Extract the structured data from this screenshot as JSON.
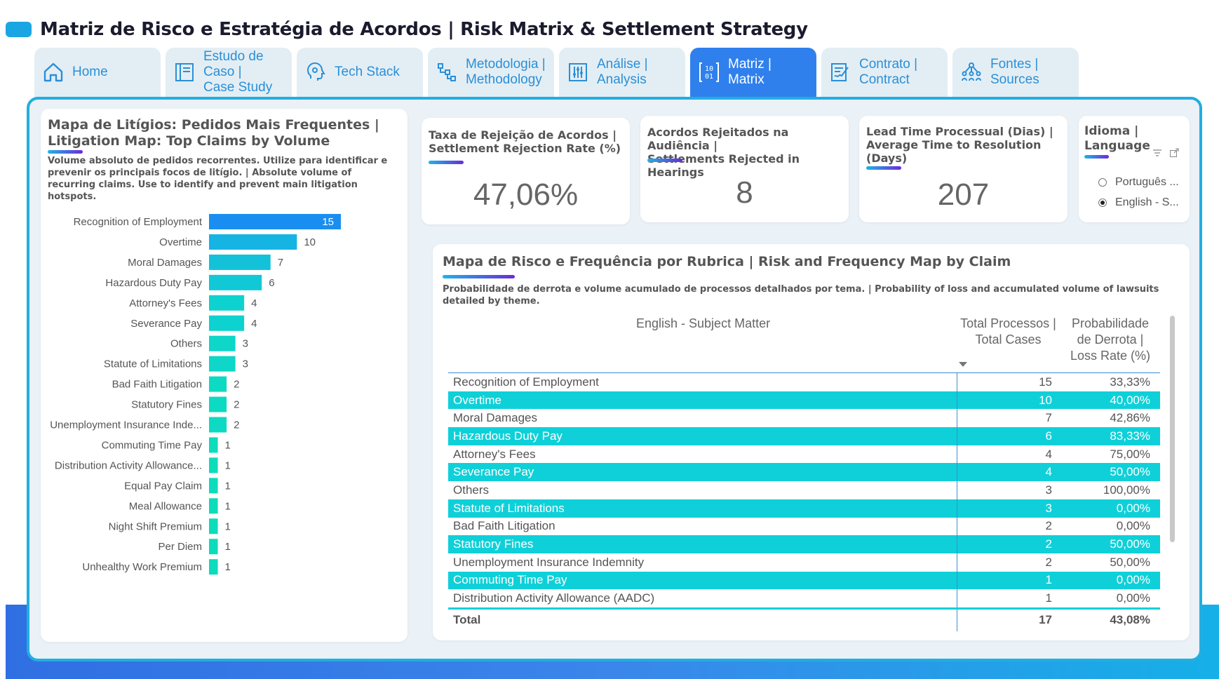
{
  "page_title": "Matriz de Risco e Estratégia de Acordos | Risk Matrix & Settlement Strategy",
  "tabs": [
    {
      "label": "Home",
      "icon": "home-icon",
      "active": false
    },
    {
      "label": "Estudo de Caso |\nCase Study",
      "icon": "document-icon",
      "active": false
    },
    {
      "label": "Tech Stack",
      "icon": "brain-gear-icon",
      "active": false
    },
    {
      "label": "Metodologia |\nMethodology",
      "icon": "flow-icon",
      "active": false
    },
    {
      "label": "Análise |\nAnalysis",
      "icon": "sliders-icon",
      "active": false
    },
    {
      "label": "Matriz |\nMatrix",
      "icon": "binary-matrix-icon",
      "active": true
    },
    {
      "label": "Contrato |\nContract",
      "icon": "contract-icon",
      "active": false
    },
    {
      "label": "Fontes |\nSources",
      "icon": "network-icon",
      "active": false
    }
  ],
  "bar_card": {
    "title": "Mapa de Litígios: Pedidos Mais Frequentes | Litigation Map: Top Claims by Volume",
    "subtitle": "Volume absoluto de pedidos recorrentes. Utilize para identificar e prevenir os principais focos de litígio. | Absolute volume of recurring claims. Use to identify and prevent main litigation hotspots."
  },
  "chart_data": {
    "type": "bar",
    "orientation": "horizontal",
    "categories": [
      "Recognition of Employment",
      "Overtime",
      "Moral Damages",
      "Hazardous Duty Pay",
      "Attorney's Fees",
      "Severance Pay",
      "Others",
      "Statute of Limitations",
      "Bad Faith Litigation",
      "Statutory Fines",
      "Unemployment Insurance Inde...",
      "Commuting Time Pay",
      "Distribution Activity Allowance...",
      "Equal Pay Claim",
      "Meal Allowance",
      "Night Shift Premium",
      "Per Diem",
      "Unhealthy Work Premium"
    ],
    "values": [
      15,
      10,
      7,
      6,
      4,
      4,
      3,
      3,
      2,
      2,
      2,
      1,
      1,
      1,
      1,
      1,
      1,
      1
    ],
    "xlim": [
      0,
      15
    ],
    "highlight_color": "#1a8ef0",
    "colors": [
      "#1a8ef0",
      "#16b4e2",
      "#13c2d9",
      "#11c8d6",
      "#0ed2cf",
      "#0ed2cf",
      "#0ed6c8",
      "#0ed6c8",
      "#0ddac2",
      "#0ddac2",
      "#0ddac2",
      "#0cdcbc",
      "#0cdcbc",
      "#0cdcbc",
      "#0cdcbc",
      "#0cdcbc",
      "#0cdcbc",
      "#0cdcbc"
    ]
  },
  "kpis": [
    {
      "title": "Taxa de Rejeição de Acordos |\nSettlement Rejection Rate (%)",
      "value": "47,06%"
    },
    {
      "title": "Acordos Rejeitados na Audiência |\nSettlements Rejected in Hearings",
      "value": "8"
    },
    {
      "title": "Lead Time Processual (Dias) |\nAverage Time to Resolution\n(Days)",
      "value": "207"
    }
  ],
  "language": {
    "title": "Idioma |\nLanguage",
    "options": [
      {
        "label": "Português ...",
        "selected": false
      },
      {
        "label": "English - S...",
        "selected": true
      }
    ]
  },
  "table_card": {
    "title": "Mapa de Risco e Frequência por Rubrica | Risk and Frequency Map by Claim",
    "subtitle": "Probabilidade de derrota e volume acumulado de processos detalhados por tema. | Probability of loss and accumulated volume of lawsuits detailed by theme.",
    "columns": [
      "English - Subject Matter",
      "Total Processos |\nTotal Cases",
      "Probabilidade\nde Derrota |\nLoss Rate (%)"
    ],
    "rows": [
      {
        "subject": "Recognition of Employment",
        "cases": "15",
        "loss": "33,33%",
        "hl": false
      },
      {
        "subject": "Overtime",
        "cases": "10",
        "loss": "40,00%",
        "hl": true
      },
      {
        "subject": "Moral Damages",
        "cases": "7",
        "loss": "42,86%",
        "hl": false
      },
      {
        "subject": "Hazardous Duty Pay",
        "cases": "6",
        "loss": "83,33%",
        "hl": true
      },
      {
        "subject": "Attorney's Fees",
        "cases": "4",
        "loss": "75,00%",
        "hl": false
      },
      {
        "subject": "Severance Pay",
        "cases": "4",
        "loss": "50,00%",
        "hl": true
      },
      {
        "subject": "Others",
        "cases": "3",
        "loss": "100,00%",
        "hl": false
      },
      {
        "subject": "Statute of Limitations",
        "cases": "3",
        "loss": "0,00%",
        "hl": true
      },
      {
        "subject": "Bad Faith Litigation",
        "cases": "2",
        "loss": "0,00%",
        "hl": false
      },
      {
        "subject": "Statutory Fines",
        "cases": "2",
        "loss": "50,00%",
        "hl": true
      },
      {
        "subject": "Unemployment Insurance Indemnity",
        "cases": "2",
        "loss": "50,00%",
        "hl": false
      },
      {
        "subject": "Commuting Time Pay",
        "cases": "1",
        "loss": "0,00%",
        "hl": true
      },
      {
        "subject": "Distribution Activity Allowance (AADC)",
        "cases": "1",
        "loss": "0,00%",
        "hl": false
      }
    ],
    "total": {
      "label": "Total",
      "cases": "17",
      "loss": "43,08%"
    }
  }
}
